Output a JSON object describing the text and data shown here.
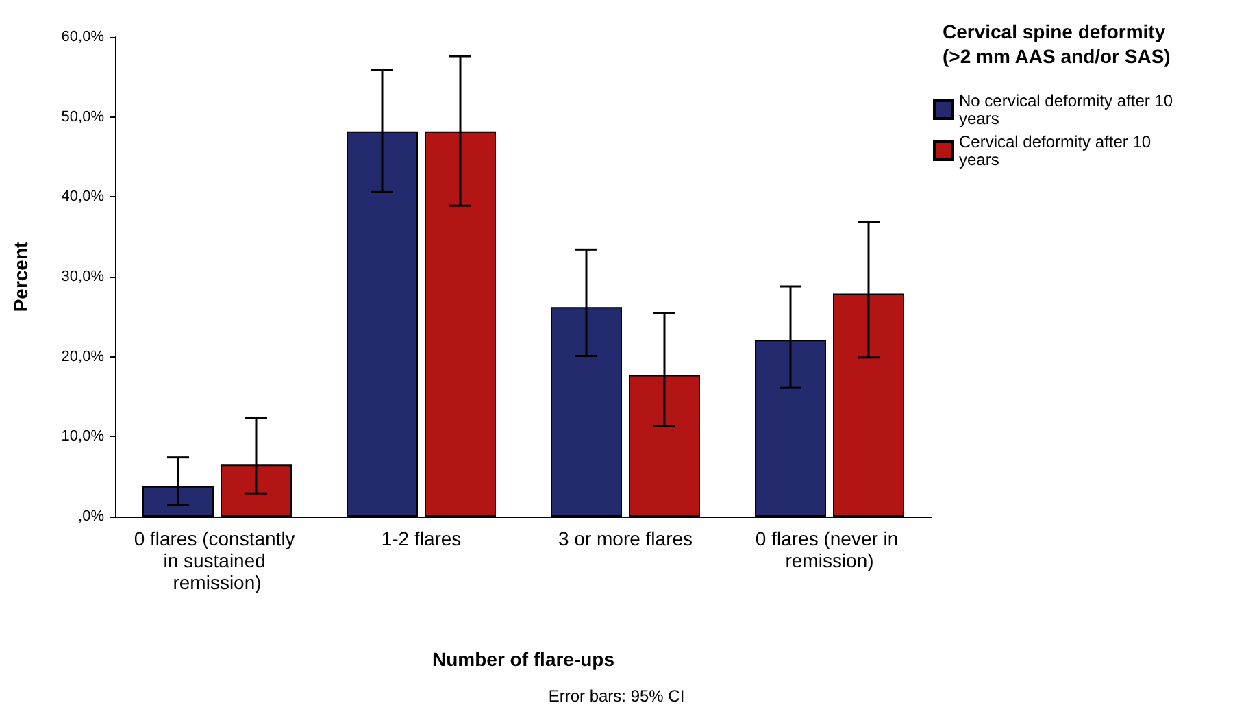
{
  "chart_data": {
    "type": "bar",
    "xlabel": "Number of flare-ups",
    "ylabel": "Percent",
    "legend_title": "Cervical spine deformity (>2 mm AAS and/or SAS)",
    "categories": [
      "0 flares (constantly in sustained remission)",
      "1-2 flares",
      "3 or more flares",
      "0 flares (never in remission)"
    ],
    "series": [
      {
        "name": "No cervical deformity after 10 years",
        "color": "#232a6e",
        "values": [
          3.8,
          48.2,
          26.2,
          22.1
        ],
        "errors": [
          [
            1.5,
            7.4
          ],
          [
            40.6,
            55.9
          ],
          [
            20.1,
            33.4
          ],
          [
            16.1,
            28.8
          ]
        ]
      },
      {
        "name": "Cervical deformity after 10 years",
        "color": "#b31414",
        "values": [
          6.5,
          48.2,
          17.7,
          27.9
        ],
        "errors": [
          [
            2.9,
            12.3
          ],
          [
            38.9,
            57.6
          ],
          [
            11.3,
            25.5
          ],
          [
            19.9,
            36.9
          ]
        ]
      }
    ],
    "ylim": [
      0,
      60
    ],
    "yticks": [
      {
        "value": 0,
        "label": ",0%"
      },
      {
        "value": 10,
        "label": "10,0%"
      },
      {
        "value": 20,
        "label": "20,0%"
      },
      {
        "value": 30,
        "label": "30,0%"
      },
      {
        "value": 40,
        "label": "40,0%"
      },
      {
        "value": 50,
        "label": "50,0%"
      },
      {
        "value": 60,
        "label": "60,0%"
      }
    ],
    "grid": false,
    "legend": "top right",
    "annotations": [
      "Error bars: 95% CI"
    ]
  }
}
